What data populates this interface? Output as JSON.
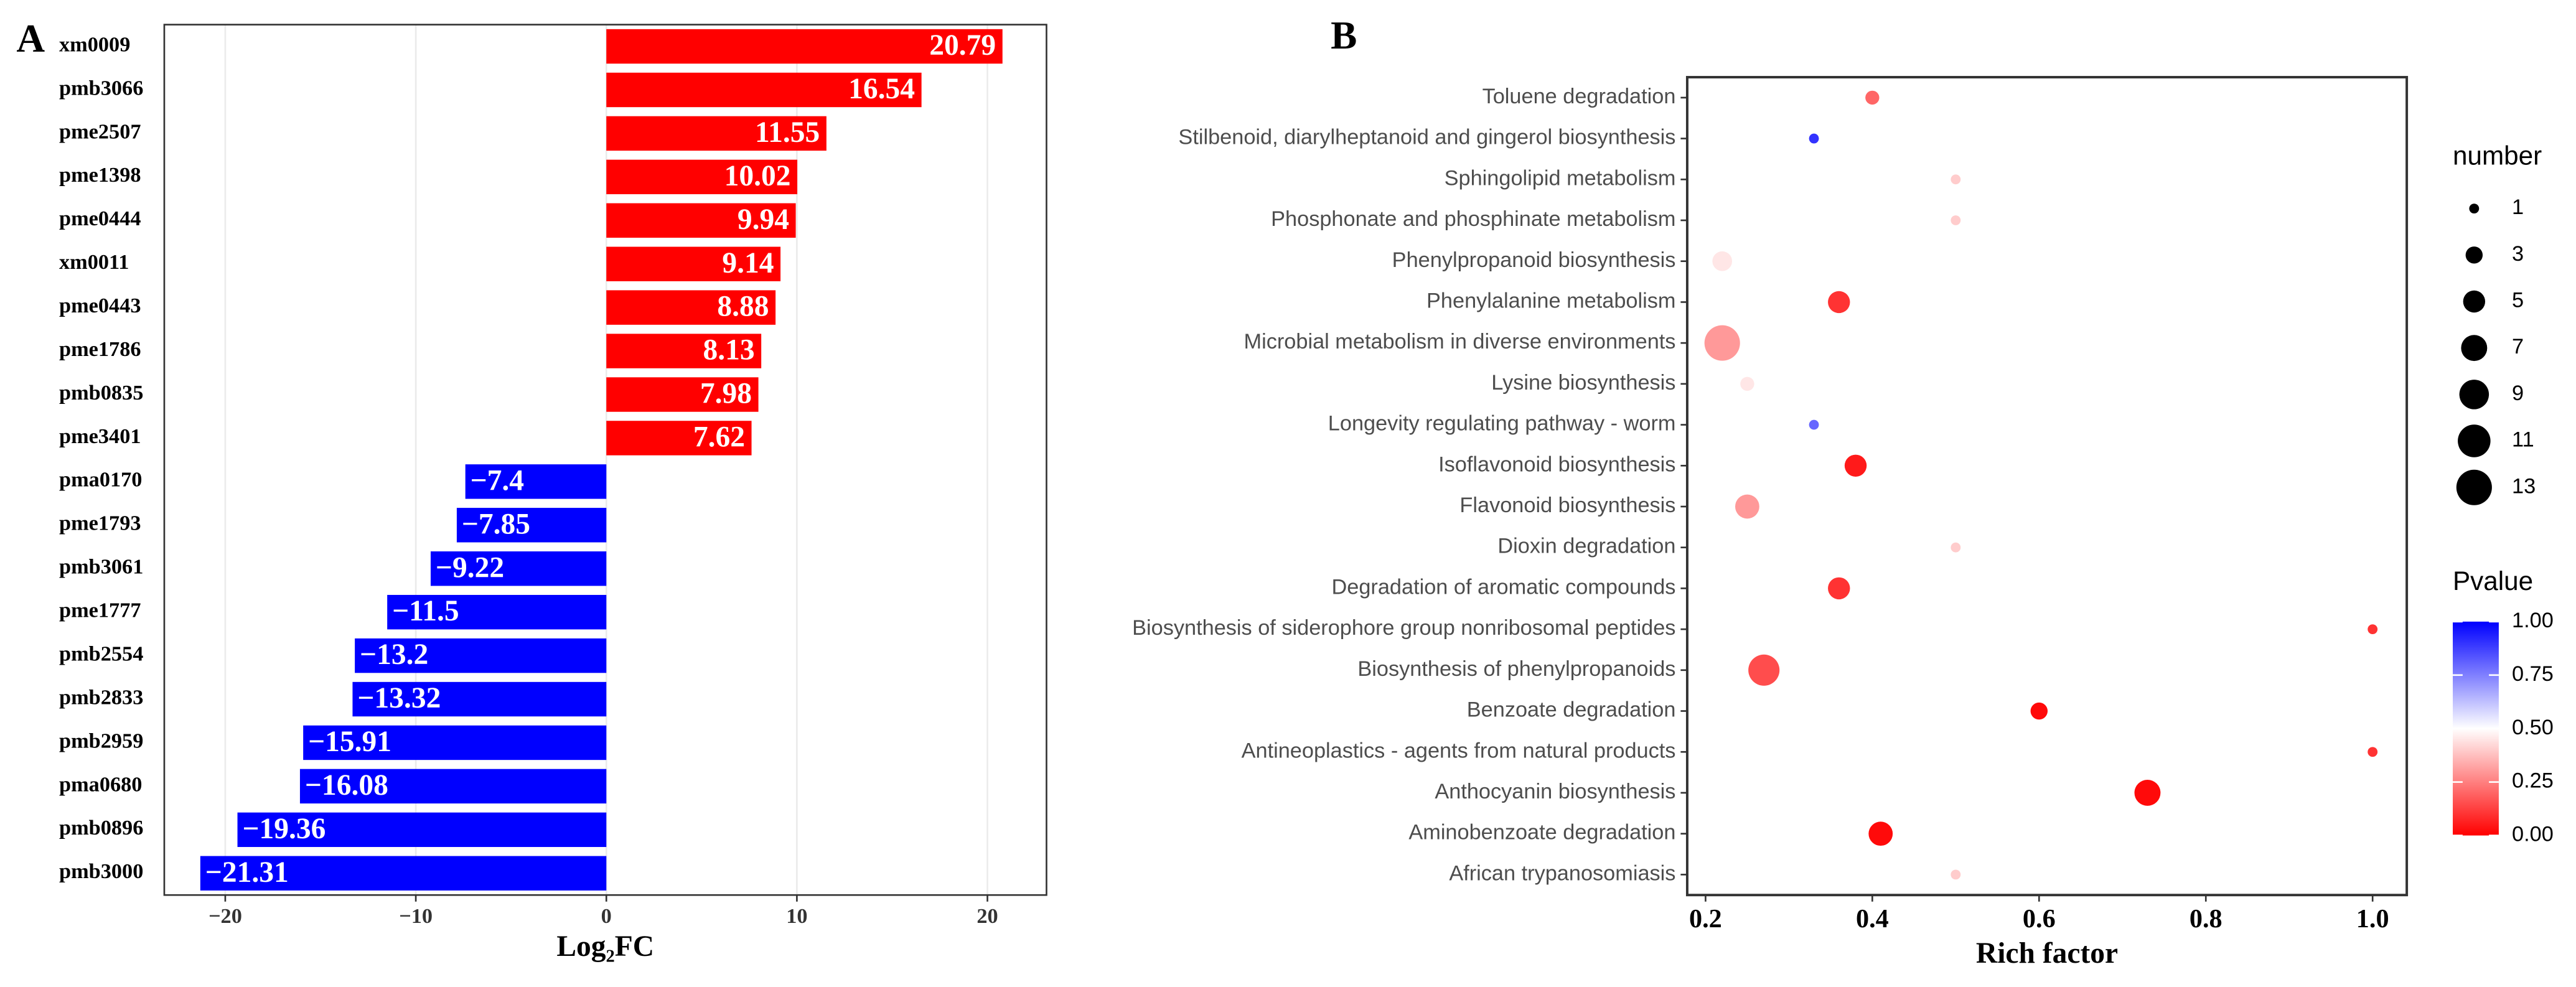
{
  "chart_data": [
    {
      "type": "bar",
      "panel": "A",
      "orientation": "horizontal",
      "categories": [
        "xm0009",
        "pmb3066",
        "pme2507",
        "pme1398",
        "pme0444",
        "xm0011",
        "pme0443",
        "pme1786",
        "pmb0835",
        "pme3401",
        "pma0170",
        "pme1793",
        "pmb3061",
        "pme1777",
        "pmb2554",
        "pmb2833",
        "pmb2959",
        "pma0680",
        "pmb0896",
        "pmb3000"
      ],
      "values": [
        20.79,
        16.54,
        11.55,
        10.02,
        9.94,
        9.14,
        8.88,
        8.13,
        7.98,
        7.62,
        -7.4,
        -7.85,
        -9.22,
        -11.5,
        -13.2,
        -13.32,
        -15.91,
        -16.08,
        -19.36,
        -21.31
      ],
      "value_labels": [
        "20.79",
        "16.54",
        "11.55",
        "10.02",
        "9.94",
        "9.14",
        "8.88",
        "8.13",
        "7.98",
        "7.62",
        "−7.4",
        "−7.85",
        "−9.22",
        "−11.5",
        "−13.2",
        "−13.32",
        "−15.91",
        "−16.08",
        "−19.36",
        "−21.31"
      ],
      "positive_color": "#ff0000",
      "negative_color": "#0000ff",
      "x_label": "Log₂FC",
      "xlim": [
        -23.2,
        23.1
      ],
      "xticks": [
        {
          "value": -20,
          "label": "−20"
        },
        {
          "value": -10,
          "label": "−10"
        },
        0,
        10,
        20
      ],
      "grid": true
    },
    {
      "type": "scatter",
      "panel": "B",
      "categories": [
        "Toluene degradation",
        "Stilbenoid, diarylheptanoid and gingerol biosynthesis",
        "Sphingolipid metabolism",
        "Phosphonate and phosphinate metabolism",
        "Phenylpropanoid biosynthesis",
        "Phenylalanine metabolism",
        "Microbial metabolism in diverse environments",
        "Lysine biosynthesis",
        "Longevity regulating pathway - worm",
        "Isoflavonoid biosynthesis",
        "Flavonoid biosynthesis",
        "Dioxin degradation",
        "Degradation of aromatic compounds",
        "Biosynthesis of siderophore group nonribosomal peptides",
        "Biosynthesis of phenylpropanoids",
        "Benzoate degradation",
        "Antineoplastics - agents from natural products",
        "Anthocyanin biosynthesis",
        "Aminobenzoate degradation",
        "African trypanosomiasis"
      ],
      "x": [
        0.4,
        0.33,
        0.5,
        0.5,
        0.22,
        0.36,
        0.22,
        0.25,
        0.33,
        0.38,
        0.25,
        0.5,
        0.36,
        1.0,
        0.27,
        0.6,
        1.0,
        0.73,
        0.41,
        0.5
      ],
      "sizes": [
        2,
        1,
        1,
        1,
        4,
        5,
        13,
        2,
        1,
        5,
        6,
        1,
        5,
        1,
        10,
        3,
        1,
        7,
        6,
        1
      ],
      "pvalues": [
        0.2,
        0.9,
        0.4,
        0.4,
        0.45,
        0.1,
        0.3,
        0.45,
        0.8,
        0.05,
        0.3,
        0.4,
        0.1,
        0.1,
        0.15,
        0.02,
        0.1,
        0.02,
        0.02,
        0.4
      ],
      "x_label": "Rich factor",
      "xlim": [
        0.178,
        1.041
      ],
      "xticks": [
        0.2,
        0.4,
        0.6,
        0.8,
        {
          "value": 1,
          "label": "1.0"
        }
      ],
      "size_legend": {
        "title": "number",
        "values": [
          1,
          3,
          5,
          7,
          9,
          11,
          13
        ]
      },
      "colorbar": {
        "title": "Pvalue",
        "lim": [
          -0.025,
          1.05
        ],
        "colorscale": [
          "#ff0000",
          "#ffffff",
          "#0000ff"
        ],
        "ticks": [
          {
            "value": 0,
            "label": "0.00"
          },
          0.25,
          {
            "value": 0.5,
            "label": "0.50"
          },
          0.75,
          {
            "value": 1,
            "label": "1.00"
          }
        ]
      }
    }
  ]
}
